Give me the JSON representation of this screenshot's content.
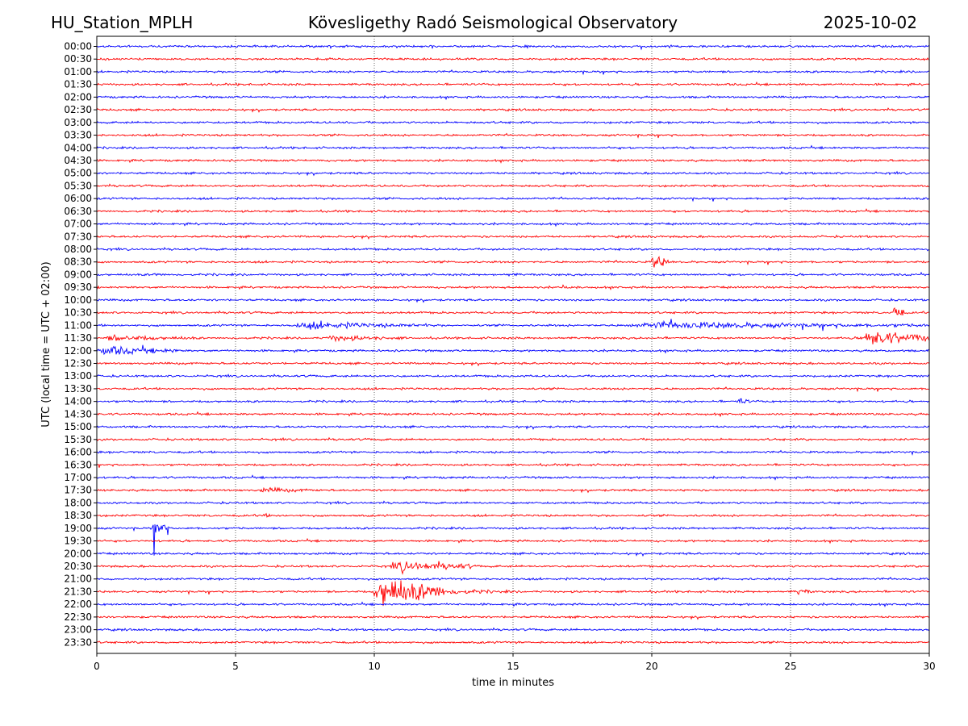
{
  "header": {
    "station": "HU_Station_MPLH",
    "observatory": "Kövesligethy Radó Seismological Observatory",
    "date": "2025-10-02"
  },
  "chart_data": {
    "type": "line",
    "title": "Kövesligethy Radó Seismological Observatory",
    "xlabel": "time in minutes",
    "ylabel": "UTC (local time = UTC + 02:00)",
    "xlim": [
      0,
      30
    ],
    "x_ticks": [
      "0",
      "5",
      "10",
      "15",
      "20",
      "25",
      "30"
    ],
    "grid": "vertical dotted lines at each x tick",
    "row_labels": [
      "00:00",
      "00:30",
      "01:00",
      "01:30",
      "02:00",
      "02:30",
      "03:00",
      "03:30",
      "04:00",
      "04:30",
      "05:00",
      "05:30",
      "06:00",
      "06:30",
      "07:00",
      "07:30",
      "08:00",
      "08:30",
      "09:00",
      "09:30",
      "10:00",
      "10:30",
      "11:00",
      "11:30",
      "12:00",
      "12:30",
      "13:00",
      "13:30",
      "14:00",
      "14:30",
      "15:00",
      "15:30",
      "16:00",
      "16:30",
      "17:00",
      "17:30",
      "18:00",
      "18:30",
      "19:00",
      "19:30",
      "20:00",
      "20:30",
      "21:00",
      "21:30",
      "22:00",
      "22:30",
      "23:00",
      "23:30"
    ],
    "row_colors": [
      "#0000ff",
      "#ff0000"
    ],
    "background_noise_amplitude": 1,
    "events": [
      {
        "row": "08:30",
        "start_min": 20.0,
        "end_min": 20.6,
        "amplitude": 9
      },
      {
        "row": "09:00",
        "start_min": 2.0,
        "end_min": 2.6,
        "amplitude": 2.5
      },
      {
        "row": "09:00",
        "start_min": 14.8,
        "end_min": 15.3,
        "amplitude": 2.5
      },
      {
        "row": "09:30",
        "start_min": 16.7,
        "end_min": 17.5,
        "amplitude": 2.5
      },
      {
        "row": "10:30",
        "start_min": 28.7,
        "end_min": 29.1,
        "amplitude": 10
      },
      {
        "row": "11:00",
        "start_min": 7.0,
        "end_min": 12.0,
        "amplitude": 4
      },
      {
        "row": "11:00",
        "start_min": 19.0,
        "end_min": 29.9,
        "amplitude": 4
      },
      {
        "row": "11:30",
        "start_min": 0.2,
        "end_min": 3.5,
        "amplitude": 3.5
      },
      {
        "row": "11:30",
        "start_min": 8.2,
        "end_min": 11.0,
        "amplitude": 3.5
      },
      {
        "row": "11:30",
        "start_min": 27.5,
        "end_min": 30.0,
        "amplitude": 9
      },
      {
        "row": "12:00",
        "start_min": 0.0,
        "end_min": 3.0,
        "amplitude": 5
      },
      {
        "row": "14:00",
        "start_min": 23.1,
        "end_min": 23.6,
        "amplitude": 4
      },
      {
        "row": "17:30",
        "start_min": 5.8,
        "end_min": 8.0,
        "amplitude": 3
      },
      {
        "row": "18:30",
        "start_min": 5.8,
        "end_min": 7.0,
        "amplitude": 2
      },
      {
        "row": "19:00",
        "start_min": 2.0,
        "end_min": 2.6,
        "amplitude": 12
      },
      {
        "row": "20:30",
        "start_min": 10.6,
        "end_min": 13.5,
        "amplitude": 6
      },
      {
        "row": "21:30",
        "start_min": 10.0,
        "end_min": 12.5,
        "amplitude": 17
      },
      {
        "row": "21:30",
        "start_min": 12.5,
        "end_min": 15.0,
        "amplitude": 3
      },
      {
        "row": "21:30",
        "start_min": 25.2,
        "end_min": 25.8,
        "amplitude": 4
      }
    ]
  }
}
